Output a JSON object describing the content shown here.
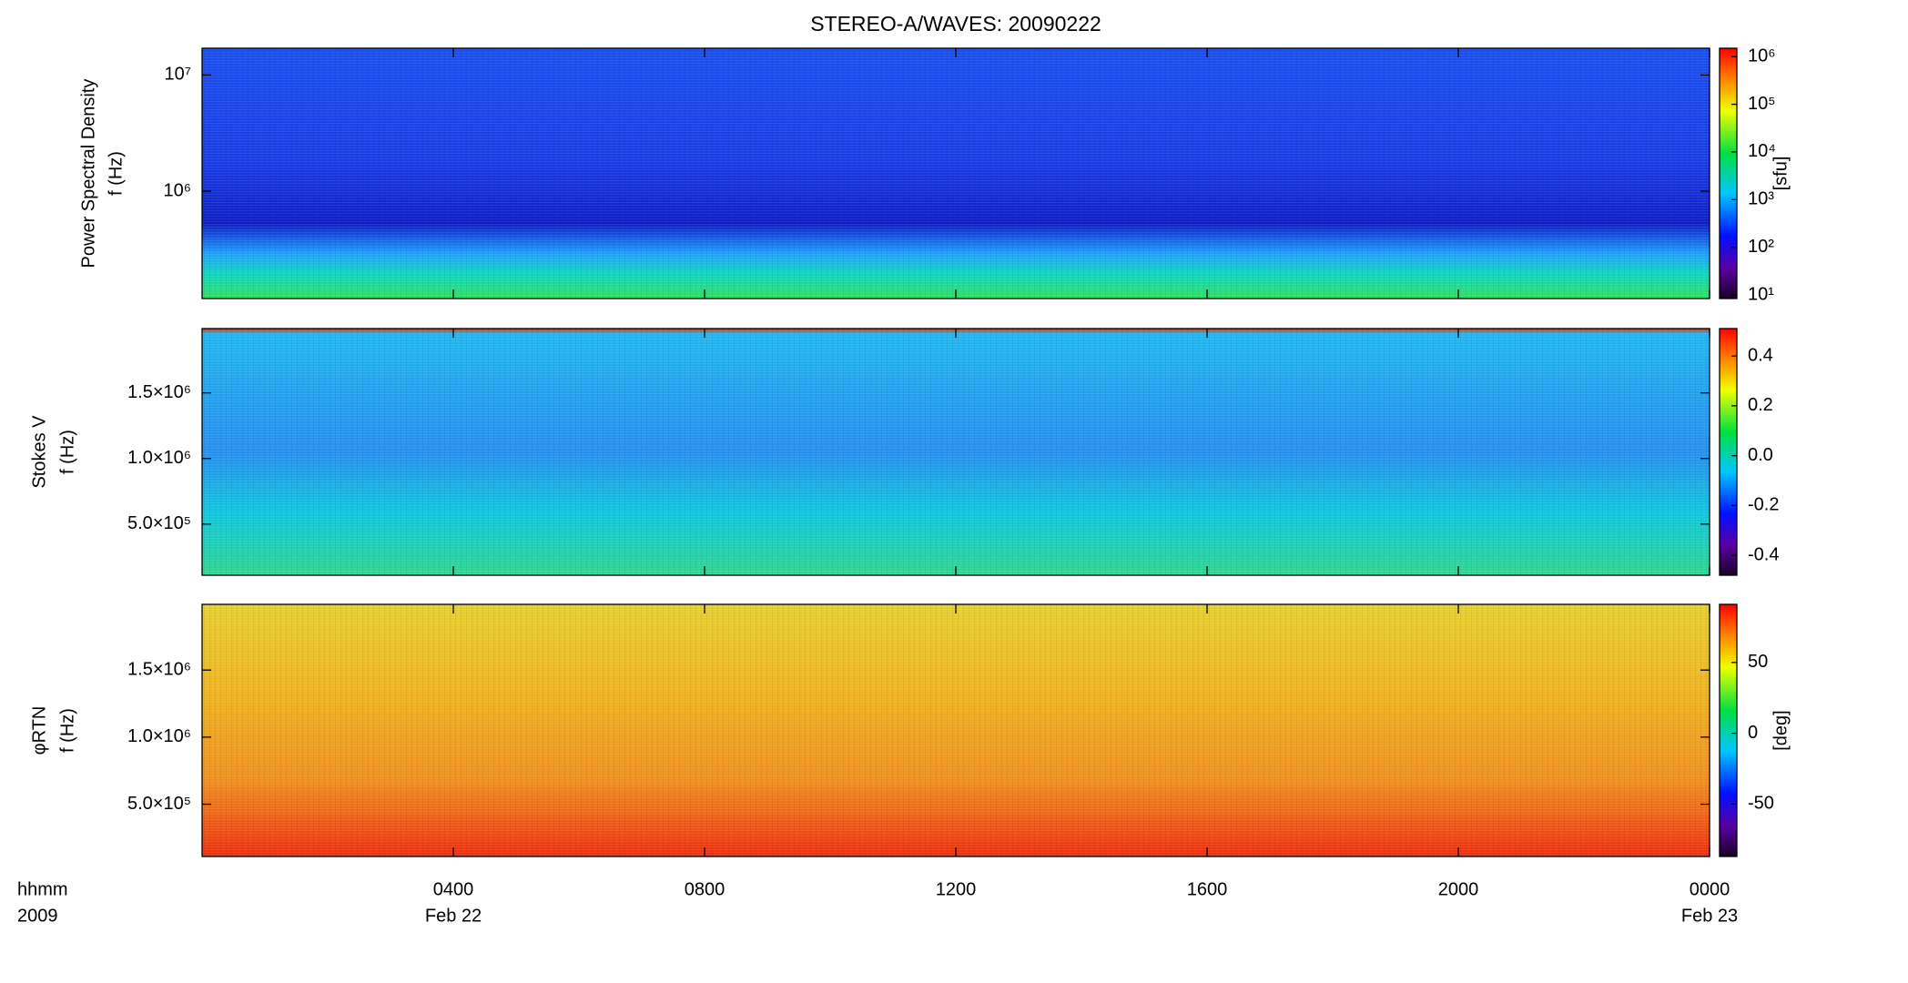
{
  "chart_data": [
    {
      "type": "spectrogram",
      "title": "STEREO-A/WAVES: 20090222",
      "ylabel": [
        "Power Spectral Density",
        "f (Hz)"
      ],
      "ylog": true,
      "ylim": [
        119000,
        17000000
      ],
      "yticks": [
        {
          "value": 1000000,
          "label": "10⁶"
        },
        {
          "value": 10000000,
          "label": "10⁷"
        }
      ],
      "colorbar": {
        "log": true,
        "lim": [
          8.4,
          1500000
        ],
        "label": "[sfu]",
        "ticks": [
          {
            "value": 10,
            "label": "10¹"
          },
          {
            "value": 100,
            "label": "10²"
          },
          {
            "value": 1000,
            "label": "10³"
          },
          {
            "value": 10000,
            "label": "10⁴"
          },
          {
            "value": 100000,
            "label": "10⁵"
          },
          {
            "value": 1000000,
            "label": "10⁶"
          }
        ]
      }
    },
    {
      "type": "spectrogram",
      "ylabel": [
        "Stokes V",
        "f (Hz)"
      ],
      "ylog": false,
      "ylim": [
        110000,
        1990000
      ],
      "yticks": [
        {
          "value": 500000,
          "label": "5.0×10⁵"
        },
        {
          "value": 1000000,
          "label": "1.0×10⁶"
        },
        {
          "value": 1500000,
          "label": "1.5×10⁶"
        }
      ],
      "colorbar": {
        "log": false,
        "lim": [
          -0.48,
          0.51
        ],
        "ticks": [
          -0.4,
          -0.2,
          {
            "value": 0,
            "label": "0.0"
          },
          0.2,
          0.4
        ]
      }
    },
    {
      "type": "spectrogram",
      "ylabel": [
        "φRTN",
        "f (Hz)"
      ],
      "ylog": false,
      "ylim": [
        110000,
        1990000
      ],
      "yticks": [
        {
          "value": 500000,
          "label": "5.0×10⁵"
        },
        {
          "value": 1000000,
          "label": "1.0×10⁶"
        },
        {
          "value": 1500000,
          "label": "1.5×10⁶"
        }
      ],
      "colorbar": {
        "log": false,
        "lim": [
          -87,
          91
        ],
        "label": "[deg]",
        "ticks": [
          -50,
          0,
          50
        ]
      }
    }
  ],
  "x_axis": {
    "xlim": [
      0,
      24
    ],
    "labels": [
      "hhmm",
      "2009"
    ],
    "xticks": [
      {
        "value": 4,
        "label": "0400"
      },
      {
        "value": 8,
        "label": "0800"
      },
      {
        "value": 12,
        "label": "1200"
      },
      {
        "value": 16,
        "label": "1600"
      },
      {
        "value": 20,
        "label": "2000"
      },
      {
        "value": 24,
        "label": "0000"
      }
    ],
    "date_labels": [
      {
        "value": 4,
        "label": "Feb 22"
      },
      {
        "value": 24,
        "label": "Feb 23"
      }
    ]
  }
}
